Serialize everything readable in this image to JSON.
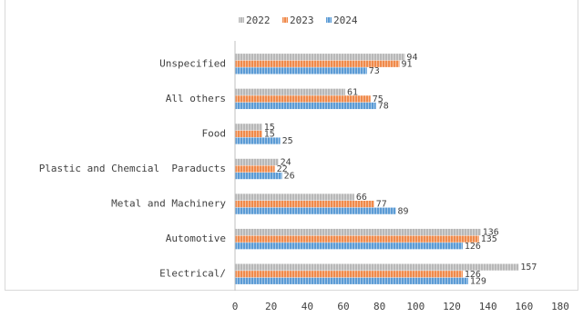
{
  "chart_data": {
    "type": "bar",
    "orientation": "horizontal",
    "categories": [
      "Unspecified",
      "All others",
      "Food",
      "Plastic and Chemcial  Paraducts",
      "Metal and Machinery",
      "Automotive",
      "Electrical/"
    ],
    "series": [
      {
        "name": "2022",
        "values": [
          94,
          61,
          15,
          24,
          66,
          136,
          157
        ],
        "color": "#b8b8b8",
        "pattern": "hatched"
      },
      {
        "name": "2023",
        "values": [
          91,
          75,
          15,
          22,
          77,
          135,
          126
        ],
        "color": "#f08a4b",
        "pattern": "hatched"
      },
      {
        "name": "2024",
        "values": [
          73,
          78,
          25,
          26,
          89,
          126,
          129
        ],
        "color": "#5b9bd5",
        "pattern": "hatched"
      }
    ],
    "xlim": [
      0,
      180
    ],
    "x_ticks": [
      0,
      20,
      40,
      60,
      80,
      100,
      120,
      140,
      160,
      180
    ],
    "grid": false,
    "legend": "top-center",
    "data_labels": true
  }
}
